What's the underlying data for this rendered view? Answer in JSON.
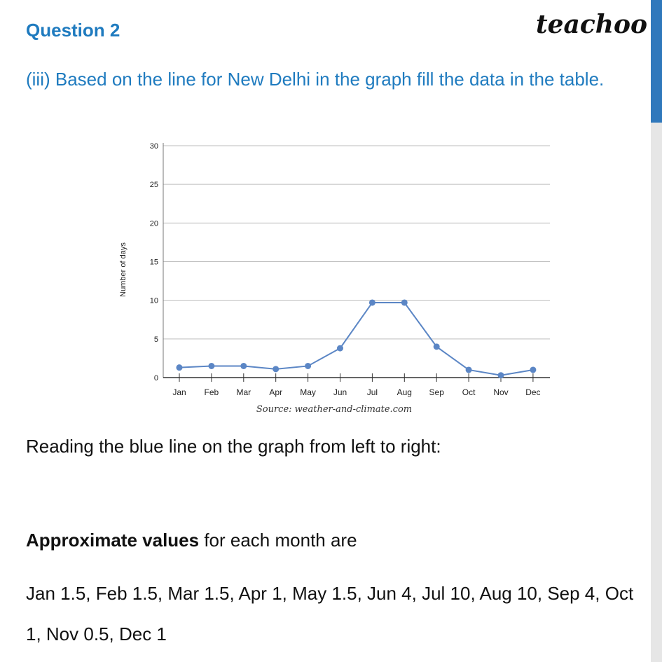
{
  "header": {
    "question_label": "Question 2",
    "brand": "teachoo",
    "prompt": "(iii) Based on the line for New Delhi in the graph fill the data in the table."
  },
  "colors": {
    "heading_blue": "#1f7bbf",
    "series_blue": "#5b86c5",
    "sidebar_blue": "#2f78bc"
  },
  "chart_data": {
    "type": "line",
    "categories": [
      "Jan",
      "Feb",
      "Mar",
      "Apr",
      "May",
      "Jun",
      "Jul",
      "Aug",
      "Sep",
      "Oct",
      "Nov",
      "Dec"
    ],
    "series": [
      {
        "values": [
          1.3,
          1.5,
          1.5,
          1.1,
          1.5,
          3.8,
          9.7,
          9.7,
          4.0,
          1.0,
          0.3,
          1.0
        ]
      }
    ],
    "ylabel": "Number of days",
    "xlabel": "",
    "ylim": [
      0,
      30
    ],
    "yticks": [
      0,
      5,
      10,
      15,
      20,
      25,
      30
    ],
    "grid": true,
    "source": "Source: weather-and-climate.com"
  },
  "body": {
    "reading": "Reading the blue line on the graph from left to right:",
    "approx_bold": "Approximate values",
    "approx_rest": " for each month are",
    "values_text": "Jan 1.5, Feb 1.5, Mar 1.5, Apr 1, May 1.5, Jun 4, Jul 10, Aug 10, Sep 4, Oct 1, Nov 0.5, Dec 1"
  }
}
